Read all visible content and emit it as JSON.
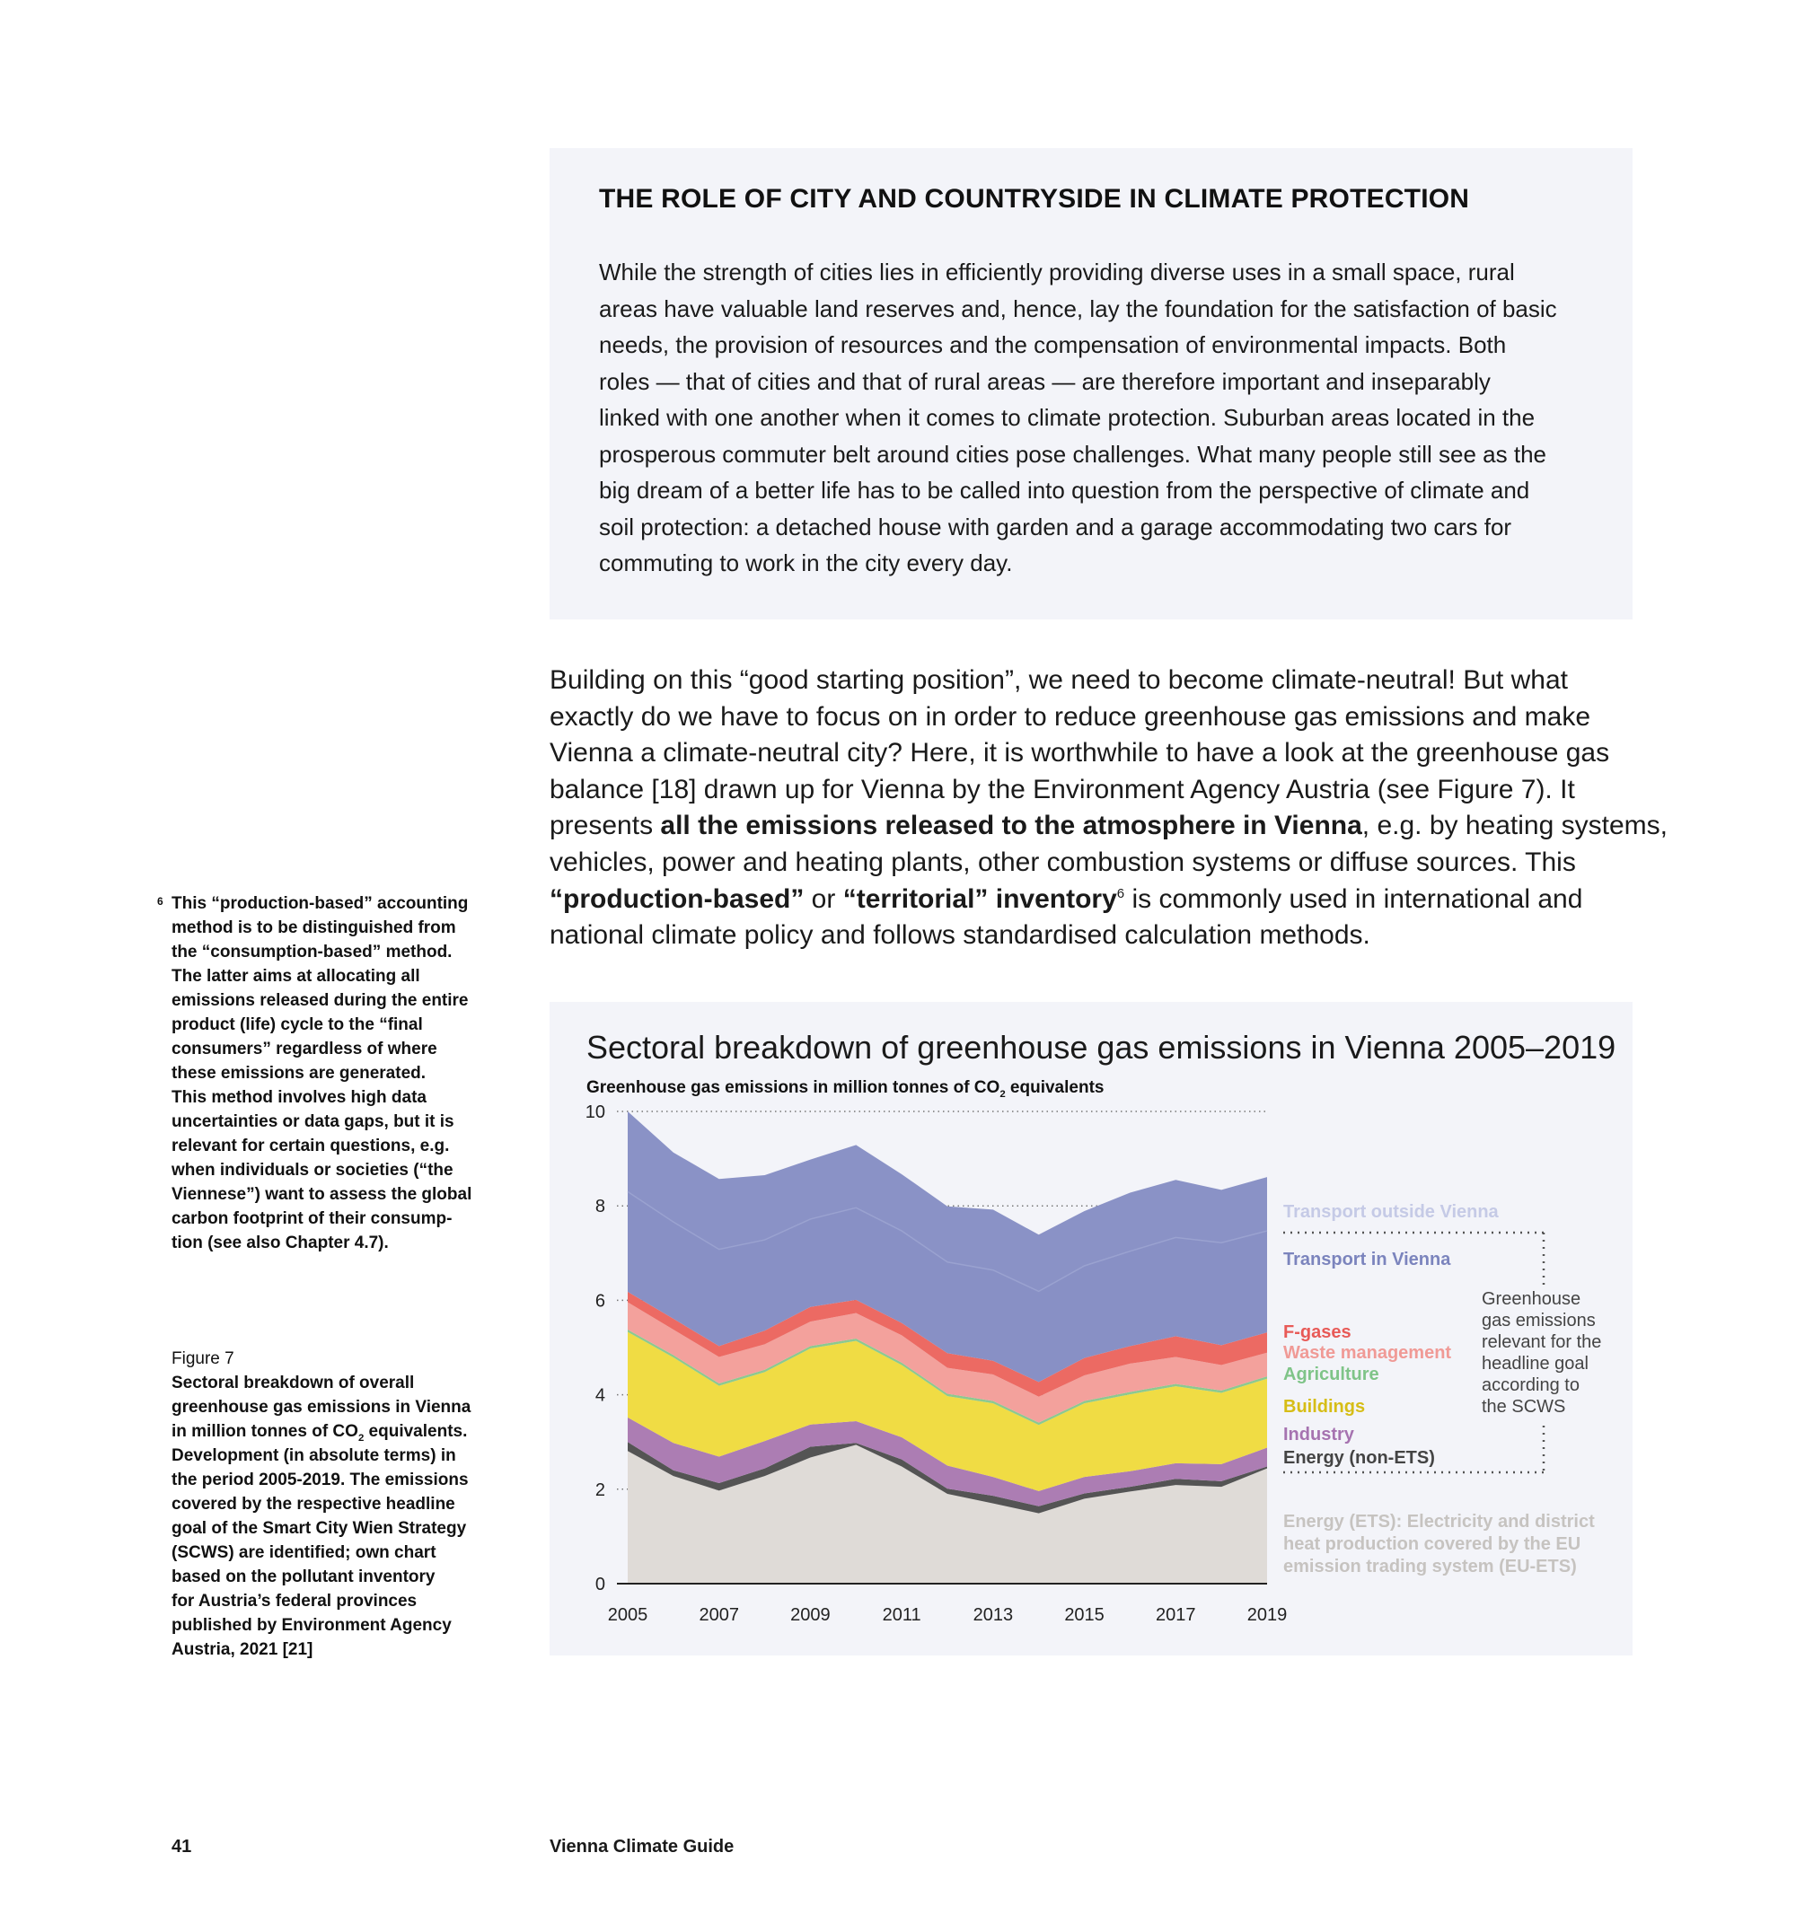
{
  "infobox": {
    "title": "THE ROLE OF CITY AND COUNTRYSIDE IN CLIMATE PROTECTION",
    "lines": [
      "While the strength of cities lies in efficiently providing diverse uses in a small space, rural",
      "areas have valuable land reserves and, hence, lay the foundation for the satisfaction of basic",
      "needs, the provision of resources and the compensation of environmental impacts. Both",
      "roles — that of cities and that of rural areas — are therefore important and inseparably",
      "linked with one another when it comes to climate protection. Suburban areas located in the",
      "prosperous commuter belt around cities pose challenges. What many people still see as the",
      "big dream of a better life has to be called into question from the perspective of climate and",
      "soil protection: a detached house with garden and a garage accommodating two cars for",
      "commuting to work in the city every day."
    ]
  },
  "main_text": {
    "l1": "Building on this “good starting position”, we need to become climate-neutral! But what",
    "l2": "exactly do we have to focus on in order to reduce greenhouse gas emissions and make",
    "l3": "Vienna a climate-neutral city? Here, it is worthwhile to have a look at the greenhouse gas",
    "l4": "balance [18] drawn up for Vienna by the Environment Agency Austria (see Figure 7). It",
    "l5a": "presents ",
    "l5b": "all the emissions released to the atmosphere in Vienna",
    "l5c": ", e.g. by heating systems,",
    "l6": "vehicles, power and heating plants, other combustion systems or diffuse sources. This",
    "l7a": "“production-based”",
    "l7b": " or ",
    "l7c": "“territorial” inventory",
    "l7sup": "6",
    "l7d": " is commonly used in international and",
    "l8": "national climate policy and follows standardised calculation methods."
  },
  "footnote": {
    "mark": "6",
    "lines": [
      "This “production-based” accounting",
      "method is to be distinguished from",
      "the “consumption-based” method.",
      "The latter aims at allocating all",
      "emissions released during the entire",
      "product (life) cycle to the “final",
      "consumers” regardless of where",
      "these emissions are generated.",
      "This method involves high data",
      "uncertainties or data gaps, but it is",
      "relevant for certain questions, e.g.",
      "when individuals or societies (“the",
      "Viennese”) want to assess the global",
      "carbon footprint of their consump-",
      "tion (see also Chapter 4.7)."
    ]
  },
  "caption": {
    "label": "Figure 7",
    "l1": "Sectoral breakdown of overall",
    "l2": "greenhouse gas emissions in Vienna",
    "l3a": "in million tonnes of CO",
    "l3sub": "2",
    "l3b": " equivalents.",
    "rest": [
      "Development (in absolute terms) in",
      "the period 2005-2019. The emissions",
      "covered by the respective headline",
      "goal of the Smart City Wien Strategy",
      "(SCWS) are identified; own chart",
      "based on the pollutant inventory",
      "for Austria’s federal provinces",
      "published by Environment Agency",
      "Austria, 2021 [21]"
    ]
  },
  "chart_data": {
    "type": "area",
    "stacked": true,
    "title": "Sectoral breakdown of greenhouse gas emissions in Vienna 2005–2019",
    "ylabel_a": "Greenhouse gas emissions in million tonnes of CO",
    "ylabel_sub": "2",
    "ylabel_b": " equivalents",
    "x": [
      2005,
      2006,
      2007,
      2008,
      2009,
      2010,
      2011,
      2012,
      2013,
      2014,
      2015,
      2016,
      2017,
      2018,
      2019
    ],
    "xticks": [
      "2005",
      "2007",
      "2009",
      "2011",
      "2013",
      "2015",
      "2017",
      "2019"
    ],
    "yticks": [
      "0",
      "2",
      "4",
      "6",
      "8",
      "10"
    ],
    "ylim": [
      0,
      10
    ],
    "grid": "dotted horizontal",
    "legend": "right, labels beside series",
    "series": [
      {
        "name": "Energy (ETS): Electricity and district heat production covered by the EU emission trading system (EU-ETS)",
        "color": "#dfdbd7",
        "label_color": "#c6c3c0",
        "values": [
          2.81,
          2.28,
          1.97,
          2.28,
          2.67,
          2.94,
          2.48,
          1.9,
          1.7,
          1.49,
          1.8,
          1.95,
          2.09,
          2.05,
          2.44
        ]
      },
      {
        "name": "Energy (non-ETS)",
        "color": "#545454",
        "label_color": "#444444",
        "values": [
          0.19,
          0.12,
          0.16,
          0.16,
          0.23,
          0.04,
          0.15,
          0.11,
          0.16,
          0.15,
          0.11,
          0.1,
          0.13,
          0.12,
          0.04
        ]
      },
      {
        "name": "Industry",
        "color": "#ac7db3",
        "label_color": "#a673b0",
        "values": [
          0.52,
          0.58,
          0.56,
          0.58,
          0.47,
          0.46,
          0.47,
          0.49,
          0.4,
          0.32,
          0.35,
          0.33,
          0.33,
          0.36,
          0.4
        ]
      },
      {
        "name": "Buildings",
        "color": "#f0dc44",
        "label_color": "#d6bd16",
        "values": [
          1.81,
          1.81,
          1.5,
          1.46,
          1.61,
          1.7,
          1.53,
          1.47,
          1.56,
          1.4,
          1.56,
          1.63,
          1.63,
          1.51,
          1.46
        ]
      },
      {
        "name": "Agriculture",
        "color": "#8cc98f",
        "label_color": "#7fc488",
        "values": [
          0.05,
          0.05,
          0.05,
          0.05,
          0.05,
          0.05,
          0.05,
          0.05,
          0.05,
          0.05,
          0.05,
          0.05,
          0.05,
          0.05,
          0.05
        ]
      },
      {
        "name": "Waste management",
        "color": "#f3a19c",
        "label_color": "#f09a96",
        "values": [
          0.58,
          0.54,
          0.56,
          0.54,
          0.52,
          0.54,
          0.58,
          0.55,
          0.56,
          0.55,
          0.54,
          0.6,
          0.57,
          0.54,
          0.5
        ]
      },
      {
        "name": "F-gases",
        "color": "#ec6a63",
        "label_color": "#e85a57",
        "values": [
          0.22,
          0.23,
          0.23,
          0.29,
          0.31,
          0.28,
          0.26,
          0.31,
          0.29,
          0.31,
          0.37,
          0.37,
          0.44,
          0.42,
          0.43
        ]
      },
      {
        "name": "Transport in Vienna",
        "color": "#8890c5",
        "label_color": "#7b84bd",
        "values": [
          2.12,
          2.05,
          2.05,
          1.92,
          1.86,
          1.95,
          1.95,
          1.93,
          1.92,
          1.92,
          1.95,
          2.01,
          2.09,
          2.17,
          2.15
        ]
      },
      {
        "name": "Transport outside Vienna",
        "color": "#8a92c6",
        "label_color": "#c5cae6",
        "values": [
          1.7,
          1.47,
          1.49,
          1.37,
          1.26,
          1.33,
          1.2,
          1.18,
          1.28,
          1.2,
          1.16,
          1.24,
          1.22,
          1.12,
          1.14
        ]
      }
    ],
    "legend_labels": {
      "transport_outside": "Transport outside Vienna",
      "transport_in": "Transport in Vienna",
      "fgases": "F-gases",
      "waste": "Waste management",
      "agriculture": "Agriculture",
      "buildings": "Buildings",
      "industry": "Industry",
      "energy_non_ets": "Energy (non-ETS)",
      "energy_ets": [
        "Energy (ETS): Electricity and district",
        "heat production covered by the EU",
        "emission trading system (EU-ETS)"
      ]
    },
    "annotation": [
      "Greenhouse",
      "gas emissions",
      "relevant for the",
      "headline goal",
      "according to",
      "the SCWS"
    ]
  },
  "footer": {
    "page": "41",
    "title": "Vienna Climate Guide"
  }
}
